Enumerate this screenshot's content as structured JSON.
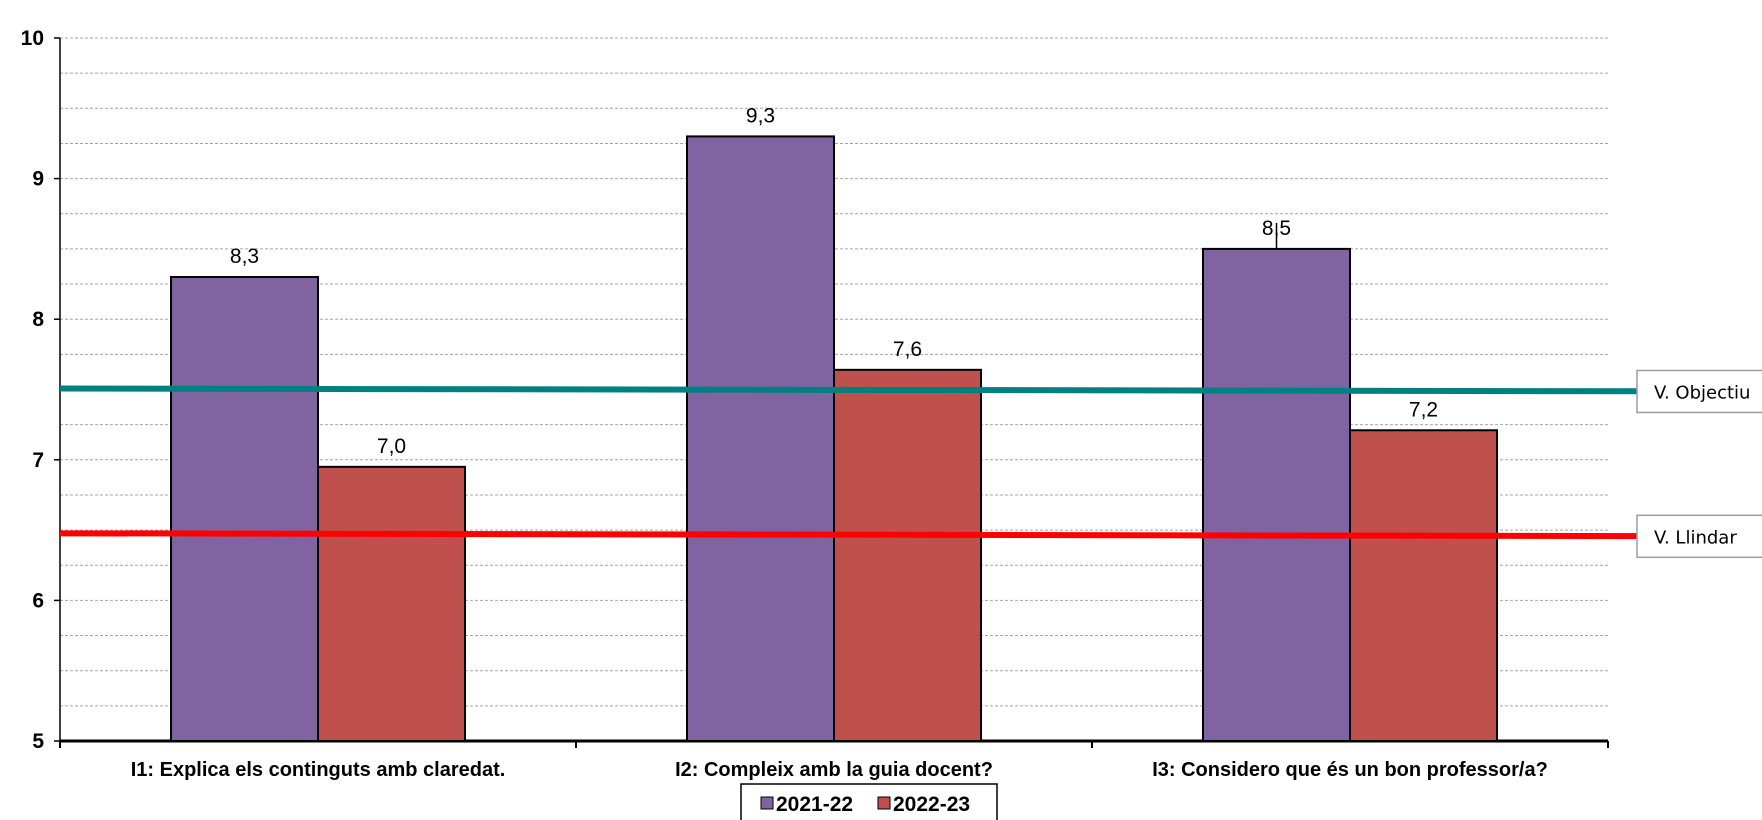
{
  "chart_data": {
    "type": "bar",
    "categories": [
      "I1: Explica els continguts amb claredat.",
      "I2: Compleix amb la guia docent?",
      "I3: Considero que és un bon professor/a?"
    ],
    "series": [
      {
        "name": "2021-22",
        "values": [
          8.3,
          9.3,
          8.5
        ],
        "labels": [
          "8,3",
          "9,3",
          "8,5"
        ],
        "color": "#8064A2"
      },
      {
        "name": "2022-23",
        "values": [
          6.95,
          7.64,
          7.21
        ],
        "labels": [
          "7,0",
          "7,6",
          "7,2"
        ],
        "color": "#C0504D"
      }
    ],
    "ylim": [
      5,
      10
    ],
    "y_ticks": [
      5,
      6,
      7,
      8,
      9,
      10
    ],
    "y_tick_labels": [
      "5",
      "6",
      "7",
      "8",
      "9",
      "10"
    ],
    "minor_gridline_step": 0.25,
    "grid": true,
    "legend_position": "bottom",
    "reference_lines": [
      {
        "label": "V. Objectiu",
        "value": 7.5,
        "color": "#008080"
      },
      {
        "label": "V. Llindar",
        "value": 6.47,
        "color": "#FF0000"
      }
    ],
    "title": "",
    "xlabel": "",
    "ylabel": ""
  }
}
